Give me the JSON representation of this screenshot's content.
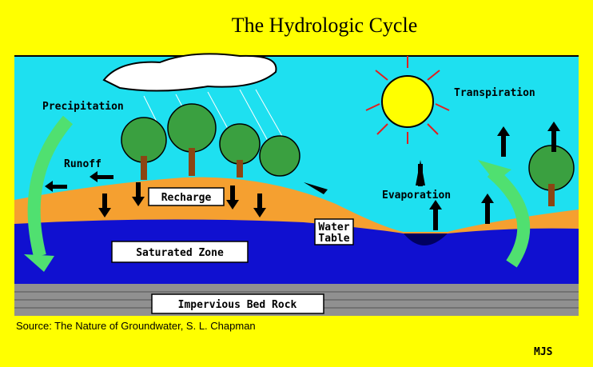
{
  "header": {
    "title": "The  Hydrologic Cycle"
  },
  "labels": {
    "precipitation": "Precipitation",
    "transpiration": "Transpiration",
    "runoff": "Runoff",
    "recharge": "Recharge",
    "evaporation": "Evaporation",
    "water_table": [
      "Water",
      "Table"
    ],
    "saturated_zone": "Saturated Zone",
    "bed_rock": "Impervious Bed Rock"
  },
  "footer": {
    "source": "Source:  The Nature of Groundwater, S. L. Chapman",
    "credit": "MJS"
  }
}
